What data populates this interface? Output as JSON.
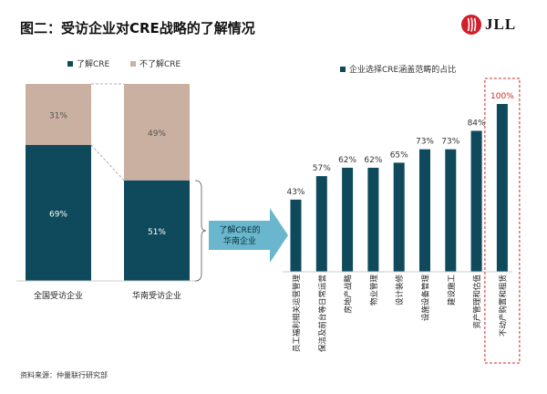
{
  "header": {
    "title": "图二：受访企业对CRE战略的了解情况",
    "logo_text": "JLL"
  },
  "footer": {
    "source": "资料来源：仲量联行研究部"
  },
  "colors": {
    "navy": "#0f4a5c",
    "tan": "#c9b0a0",
    "arrow": "#6ab6cc",
    "highlight": "#cc2a2a",
    "logo_red": "#d11f29"
  },
  "chart_data": [
    {
      "type": "bar",
      "stacked": true,
      "normalized": true,
      "categories": [
        "全国受访企业",
        "华南受访企业"
      ],
      "series": [
        {
          "name": "了解CRE",
          "values": [
            69,
            51
          ],
          "labels": [
            "69%",
            "51%"
          ],
          "color": "#0f4a5c"
        },
        {
          "name": "不了解CRE",
          "values": [
            31,
            49
          ],
          "labels": [
            "31%",
            "49%"
          ],
          "color": "#c9b0a0"
        }
      ],
      "legend_placement": "top-left",
      "annotation": "了解CRE的华南企业"
    },
    {
      "type": "bar",
      "categories": [
        "员工福利相关运营管理",
        "保洁及前台等日常运营",
        "房地产战略",
        "物业管理",
        "设计装修",
        "设施设备管理",
        "建设施工",
        "资产管理和估值",
        "不动产购置和租赁"
      ],
      "values": [
        43,
        57,
        62,
        62,
        65,
        73,
        73,
        84,
        100
      ],
      "labels": [
        "43%",
        "57%",
        "62%",
        "62%",
        "65%",
        "73%",
        "73%",
        "84%",
        "100%"
      ],
      "series_name": "企业选择CRE涵盖范畴的占比",
      "highlight_index": 8,
      "legend_placement": "top"
    }
  ]
}
